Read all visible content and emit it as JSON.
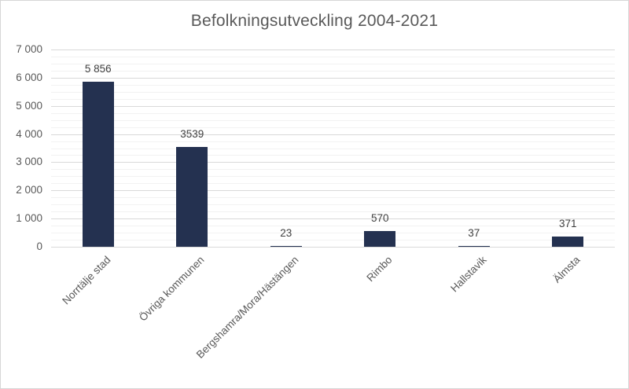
{
  "figure": {
    "background": "#FFFFFF",
    "border_color": "#D6D6D6"
  },
  "chart_data": {
    "type": "bar",
    "title": "Befolkningsutveckling 2004-2021",
    "categories": [
      "Norrtälje stad",
      "Övriga kommunen",
      "Bergshamra/Mora/Hästängen",
      "Rimbo",
      "Hallstavik",
      "Älmsta"
    ],
    "values": [
      5856,
      3539,
      23,
      570,
      37,
      371
    ],
    "data_labels": [
      "5 856",
      "3539",
      "23",
      "570",
      "37",
      "371"
    ],
    "xlabel": "",
    "ylabel": "",
    "ylim": [
      0,
      7000
    ],
    "y_major_step": 1000,
    "y_minor_step": 250,
    "y_tick_labels": [
      "0",
      "1 000",
      "2 000",
      "3 000",
      "4 000",
      "5 000",
      "6 000",
      "7 000"
    ],
    "x_tick_rotation_deg": 45,
    "grid": true,
    "legend_position": "none",
    "colors": {
      "bar": "#243150",
      "title": "#595959",
      "axis_labels": "#595959",
      "data_labels": "#404040",
      "major_gridline": "#D9D9D9",
      "minor_gridline": "#F2F2F2"
    }
  }
}
